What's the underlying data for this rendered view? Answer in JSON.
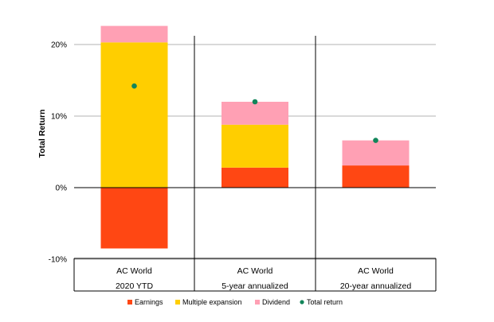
{
  "chart_data": {
    "type": "bar",
    "stacked": true,
    "ylabel": "Total Return",
    "ylim": [
      -10,
      24
    ],
    "yticks": [
      -10,
      0,
      10,
      20
    ],
    "ytick_labels": [
      "-10%",
      "0%",
      "10%",
      "20%"
    ],
    "grid": true,
    "legend_position": "bottom",
    "groups": [
      {
        "index_label": "AC World",
        "period_label": "2020 YTD"
      },
      {
        "index_label": "AC World",
        "period_label": "5-year annualized"
      },
      {
        "index_label": "AC World",
        "period_label": "20-year annualized"
      }
    ],
    "series": [
      {
        "name": "Earnings",
        "color": "#ff4713",
        "values": [
          -8.5,
          2.8,
          3.1
        ]
      },
      {
        "name": "Multiple expansion",
        "color": "#ffce00",
        "values": [
          20.3,
          6.0,
          0.0
        ]
      },
      {
        "name": "Dividend",
        "color": "#ffa0b4",
        "values": [
          2.3,
          3.2,
          3.5
        ]
      }
    ],
    "total_return": {
      "name": "Total return",
      "color": "#12855a",
      "values": [
        14.2,
        12.0,
        6.6
      ]
    }
  }
}
